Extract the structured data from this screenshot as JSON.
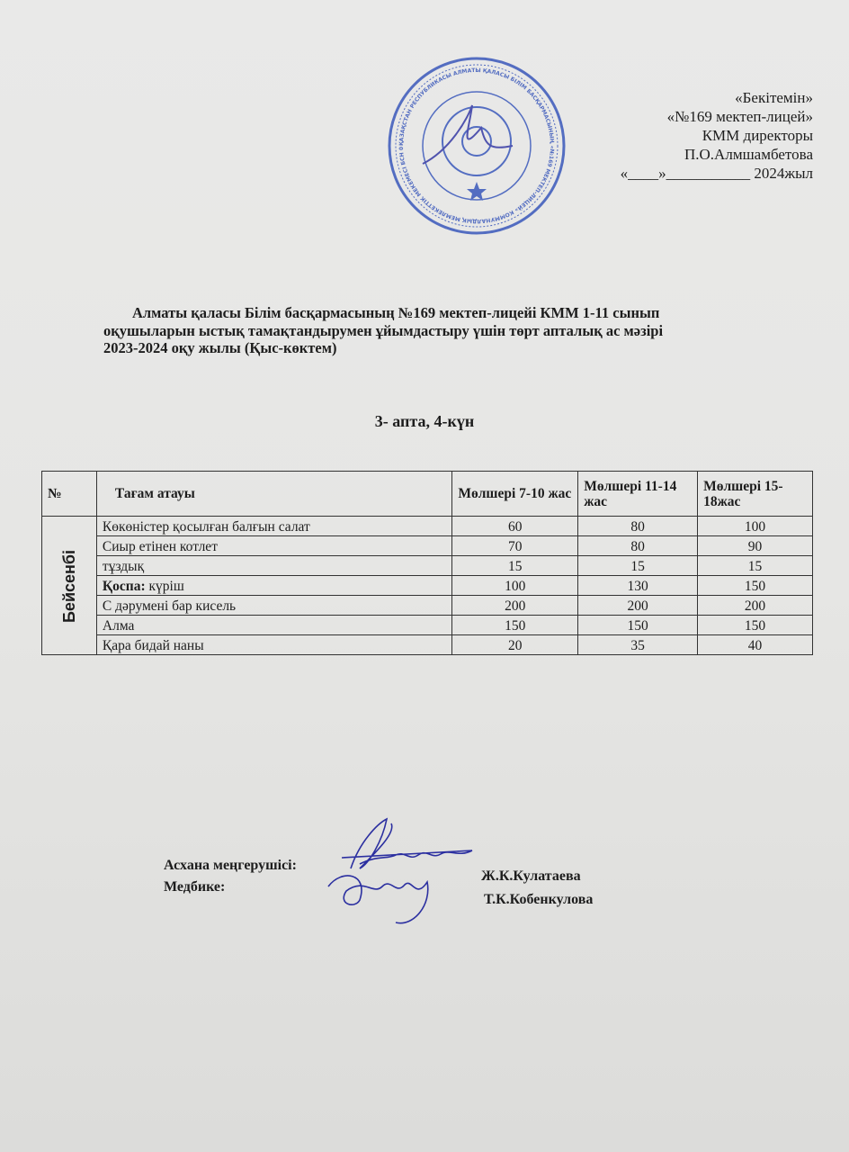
{
  "approval": {
    "lines": [
      "«Бекітемін»",
      "«№169 мектеп-лицей»",
      "КММ директоры",
      "П.О.Алмшамбетова",
      "«____»___________ 2024жыл"
    ],
    "stamp_text": "ҚАЗАҚСТАН РЕСПУБЛИКАСЫ АЛМАТЫ ҚАЛАСЫ БІЛІМ БАСҚАРМАСЫНЫҢ «№169 МЕКТЕП-ЛИЦЕЙ» КОММУНАЛДЫҚ МЕМЛЕКЕТТІК МЕКЕМЕСІ БСН 070540005457",
    "stamp_color": "#2f4fb8"
  },
  "title": {
    "line1": "Алматы қаласы  Білім басқармасының №169 мектеп-лицейі КММ 1-11 сынып",
    "line2": "оқушыларын  ыстық тамақтандырумен ұйымдастыру үшін  төрт апталық ас мәзірі",
    "line3": "2023-2024  оқу жылы  (Қыс-көктем)"
  },
  "week_day": "3- апта, 4-күн",
  "table": {
    "headers": [
      "№",
      "Тағам атауы",
      "Мөлшері 7-10 жас",
      "Мөлшері 11-14 жас",
      "Мөлшері 15-18жас"
    ],
    "day": "Бейсенбі",
    "rows": [
      {
        "name": "Көкөністер қосылған  балғын салат",
        "v1": "60",
        "v2": "80",
        "v3": "100"
      },
      {
        "name": "Сиыр етінен котлет",
        "v1": "70",
        "v2": "80",
        "v3": "90"
      },
      {
        "name": "тұздық",
        "v1": "15",
        "v2": "15",
        "v3": "15"
      },
      {
        "name_bold": "Қоспа:",
        "name": " күріш",
        "v1": "100",
        "v2": "130",
        "v3": "150"
      },
      {
        "name": "С дәрумені бар кисель",
        "v1": "200",
        "v2": "200",
        "v3": "200"
      },
      {
        "name": "Алма",
        "v1": "150",
        "v2": "150",
        "v3": "150"
      },
      {
        "name": "Қара бидай наны",
        "v1": "20",
        "v2": "35",
        "v3": "40"
      }
    ]
  },
  "signatures": {
    "role1": "Асхана меңгерушісі:",
    "name1": "Ж.К.Кулатаева",
    "role2": "Медбике:",
    "name2": "Т.К.Кобенкулова",
    "ink_color": "#2b2fa0"
  }
}
